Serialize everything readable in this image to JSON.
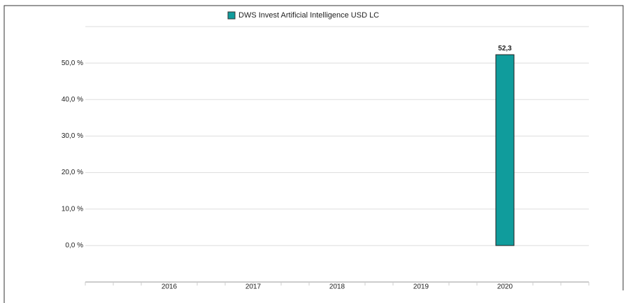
{
  "chart_data": {
    "type": "bar",
    "legend": "DWS Invest Artificial Intelligence  USD LC",
    "categories": [
      "2016",
      "2017",
      "2018",
      "2019",
      "2020"
    ],
    "values": [
      null,
      null,
      null,
      null,
      52.3
    ],
    "value_labels": [
      null,
      null,
      null,
      null,
      "52,3"
    ],
    "color": "#109c9c",
    "ylim": [
      -10,
      60
    ],
    "yticks": [
      {
        "value": 0,
        "label": "0,0 %"
      },
      {
        "value": 10,
        "label": "10,0 %"
      },
      {
        "value": 20,
        "label": "20,0 %"
      },
      {
        "value": 30,
        "label": "30,0 %"
      },
      {
        "value": 40,
        "label": "40,0 %"
      },
      {
        "value": 50,
        "label": "50,0 %"
      }
    ],
    "grid": true
  }
}
